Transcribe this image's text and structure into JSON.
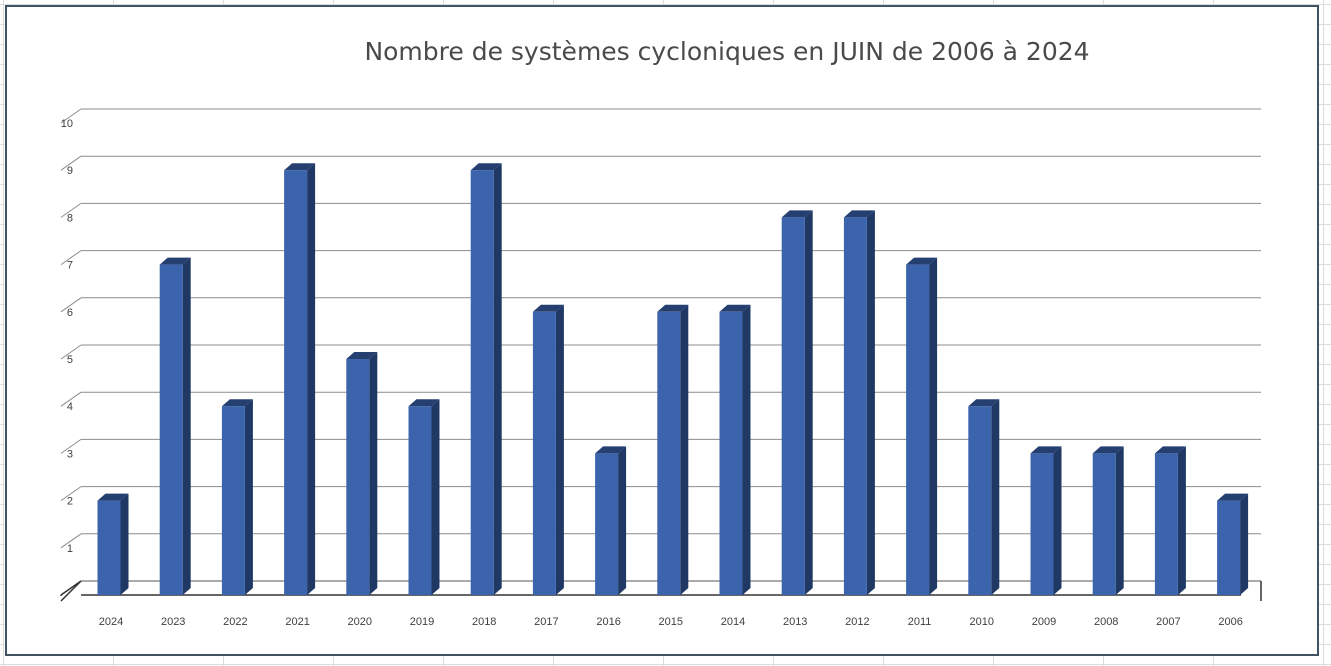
{
  "chart_data": {
    "type": "bar",
    "title": "Nombre de systèmes cycloniques en JUIN de 2006 à 2024",
    "xlabel": "",
    "ylabel": "",
    "categories": [
      "2024",
      "2023",
      "2022",
      "2021",
      "2020",
      "2019",
      "2018",
      "2017",
      "2016",
      "2015",
      "2014",
      "2013",
      "2012",
      "2011",
      "2010",
      "2009",
      "2008",
      "2007",
      "2006"
    ],
    "values": [
      2,
      7,
      4,
      9,
      5,
      4,
      9,
      6,
      3,
      6,
      6,
      8,
      8,
      7,
      4,
      3,
      3,
      3,
      2
    ],
    "ylim": [
      0,
      10
    ],
    "yticks": [
      "1",
      "2",
      "3",
      "4",
      "5",
      "6",
      "7",
      "8",
      "9",
      "10"
    ],
    "grid": true,
    "legend": "none",
    "style": "3d-column",
    "colors": {
      "bar_front": "#3c64ad",
      "bar_side": "#1f3864",
      "bar_top": "#253f70",
      "gridline": "#8c8c8c",
      "frame": "#3f5364"
    }
  }
}
